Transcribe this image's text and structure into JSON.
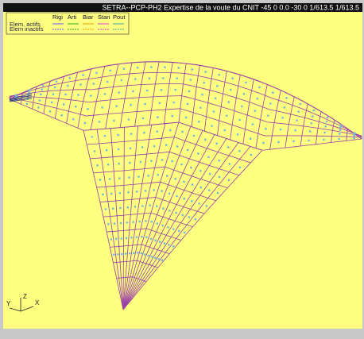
{
  "window": {
    "title": "SETRA--PCP-PH2  Expertise de la voute du CNIT -45 0 0.0 -30 0 1/613.5 1/613.5"
  },
  "legend": {
    "rows": [
      "Elem. actifs",
      "Elem inactifs"
    ],
    "columns": [
      "Rigi",
      "Arti",
      "Biar",
      "Stan",
      "Pout"
    ]
  },
  "axes": {
    "z": "Z",
    "y": "Y",
    "x": "X"
  }
}
